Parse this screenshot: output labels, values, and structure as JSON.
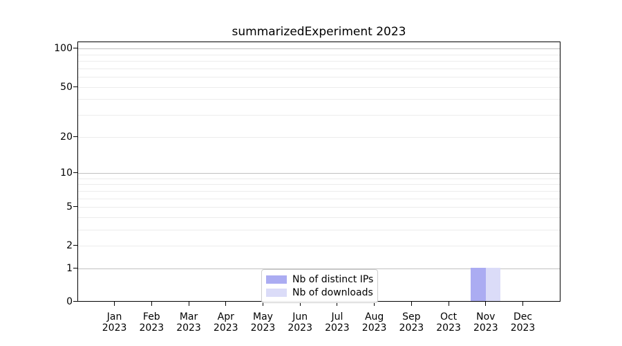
{
  "chart_data": {
    "type": "bar",
    "title": "summarizedExperiment 2023",
    "x": {
      "categories": [
        "Jan",
        "Feb",
        "Mar",
        "Apr",
        "May",
        "Jun",
        "Jul",
        "Aug",
        "Sep",
        "Oct",
        "Nov",
        "Dec"
      ],
      "year": "2023"
    },
    "series": [
      {
        "name": "Nb of distinct IPs",
        "color": "#abacf2",
        "values": [
          0,
          0,
          0,
          0,
          0,
          0,
          0,
          0,
          0,
          0,
          1,
          0
        ]
      },
      {
        "name": "Nb of downloads",
        "color": "#dbdcf8",
        "values": [
          0,
          0,
          0,
          0,
          0,
          0,
          0,
          0,
          0,
          0,
          1,
          0
        ]
      }
    ],
    "y": {
      "scale": "log1p",
      "tick_labels": [
        "0",
        "1",
        "2",
        "5",
        "10",
        "20",
        "50",
        "100"
      ],
      "tick_values": [
        0,
        1,
        2,
        5,
        10,
        20,
        50,
        100
      ],
      "major_grid_values": [
        1,
        10,
        100
      ],
      "minor_grid_values": [
        2,
        3,
        4,
        5,
        6,
        7,
        8,
        9,
        20,
        30,
        40,
        50,
        60,
        70,
        80,
        90
      ],
      "range": [
        0,
        115
      ]
    },
    "legend": {
      "position": "lower center",
      "entries": [
        "Nb of distinct IPs",
        "Nb of downloads"
      ]
    },
    "colors": {
      "major_grid": "#c1c1c1",
      "minor_grid": "#ececec",
      "axis": "#000000",
      "background": "#ffffff"
    }
  }
}
